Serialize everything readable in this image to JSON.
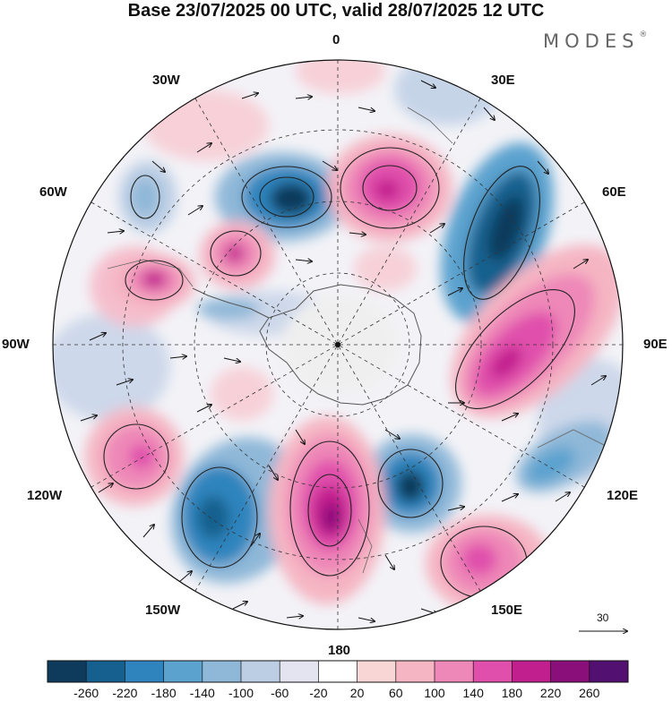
{
  "header": {
    "title": "Base 23/07/2025 00 UTC, valid 28/07/2025 12 UTC",
    "brand": "MODES",
    "brand_mark": "®"
  },
  "map": {
    "projection": "south polar stereographic",
    "longitude_labels": {
      "lon_0": "0",
      "lon_30e": "30E",
      "lon_60e": "60E",
      "lon_90e": "90E",
      "lon_120e": "120E",
      "lon_150e": "150E",
      "lon_180": "180",
      "lon_150w": "150W",
      "lon_120w": "120W",
      "lon_90w": "90W",
      "lon_60w": "60W",
      "lon_30w": "30W"
    },
    "reference_vector": "30"
  },
  "colorbar": {
    "colors": [
      "#0e3b5c",
      "#15608e",
      "#2f84bd",
      "#5ba2cf",
      "#8fb8d8",
      "#bccee4",
      "#e4e4f0",
      "#ffffff",
      "#f8d6d6",
      "#f5b5c3",
      "#ee88b8",
      "#e04fac",
      "#c21f8e",
      "#8a0f7a",
      "#521070"
    ],
    "labels": [
      "-260",
      "-220",
      "-180",
      "-140",
      "-100",
      "-60",
      "-20",
      "20",
      "60",
      "100",
      "140",
      "180",
      "220",
      "260"
    ]
  }
}
